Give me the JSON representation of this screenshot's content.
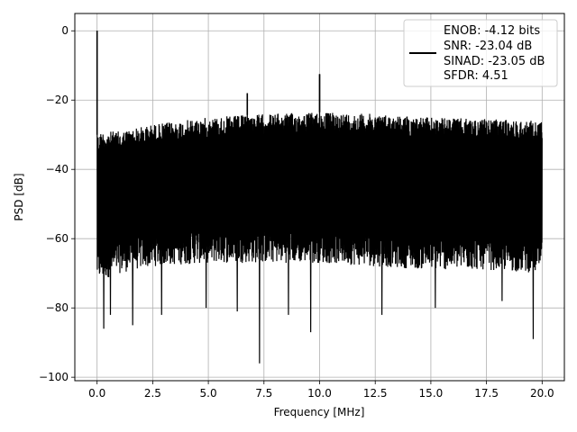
{
  "chart_data": {
    "type": "line",
    "title": "",
    "xlabel": "Frequency [MHz]",
    "ylabel": "PSD [dB]",
    "xlim": [
      -1.0,
      21.0
    ],
    "ylim": [
      -101,
      5
    ],
    "xticks": [
      0.0,
      2.5,
      5.0,
      7.5,
      10.0,
      12.5,
      15.0,
      17.5,
      20.0
    ],
    "xtick_labels": [
      "0.0",
      "2.5",
      "5.0",
      "7.5",
      "10.0",
      "12.5",
      "15.0",
      "17.5",
      "20.0"
    ],
    "yticks": [
      0,
      -20,
      -40,
      -60,
      -80,
      -100
    ],
    "ytick_labels": [
      "0",
      "−20",
      "−40",
      "−60",
      "−80",
      "−100"
    ],
    "grid": true,
    "legend_position": "top-right",
    "line_color": "#000000",
    "series": [
      {
        "legend_lines": [
          "ENOB: -4.12 bits",
          "SNR: -23.04 dB",
          "SINAD: -23.05 dB",
          "SFDR: 4.51"
        ],
        "noise_band": {
          "x": [
            0.0,
            0.2,
            1.0,
            2.5,
            5.0,
            7.5,
            10.0,
            12.5,
            15.0,
            17.5,
            20.0
          ],
          "upper": [
            -30,
            -29,
            -29,
            -27,
            -25,
            -24,
            -23.5,
            -24,
            -25,
            -25.5,
            -26
          ],
          "lower": [
            -72,
            -72,
            -70,
            -68,
            -67,
            -67,
            -67,
            -68,
            -69,
            -69,
            -70
          ]
        },
        "peaks": [
          {
            "x": 0.0,
            "y": 0
          },
          {
            "x": 6.75,
            "y": -18
          },
          {
            "x": 10.0,
            "y": -12.5
          }
        ],
        "dips": [
          {
            "x": 0.3,
            "y": -86
          },
          {
            "x": 0.6,
            "y": -82
          },
          {
            "x": 1.6,
            "y": -85
          },
          {
            "x": 2.9,
            "y": -82
          },
          {
            "x": 4.9,
            "y": -80
          },
          {
            "x": 6.3,
            "y": -81
          },
          {
            "x": 7.3,
            "y": -96
          },
          {
            "x": 8.6,
            "y": -82
          },
          {
            "x": 9.6,
            "y": -87
          },
          {
            "x": 12.8,
            "y": -82
          },
          {
            "x": 15.2,
            "y": -80
          },
          {
            "x": 18.2,
            "y": -78
          },
          {
            "x": 19.6,
            "y": -89
          }
        ]
      }
    ]
  }
}
